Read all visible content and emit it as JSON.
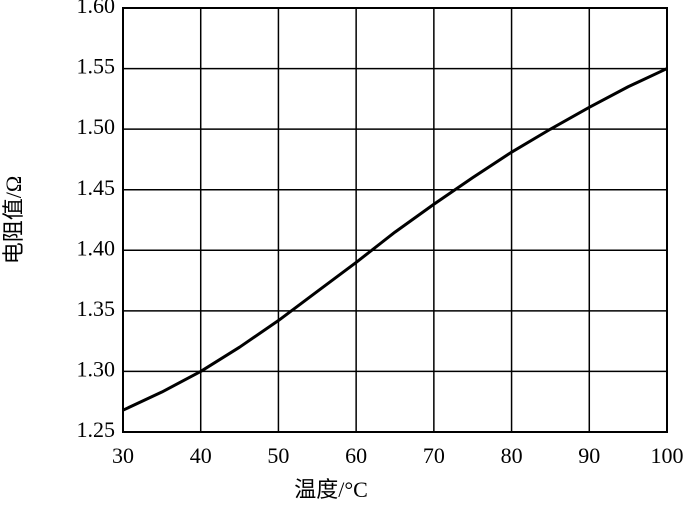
{
  "chart_data": {
    "type": "line",
    "x_label": "温度/°C",
    "y_label": "电阻值/Ω",
    "x": [
      30,
      35,
      40,
      45,
      50,
      55,
      60,
      65,
      70,
      75,
      80,
      85,
      90,
      95,
      100
    ],
    "series": [
      {
        "color": "#000000",
        "values": [
          1.268,
          1.283,
          1.3,
          1.32,
          1.342,
          1.366,
          1.39,
          1.415,
          1.438,
          1.46,
          1.481,
          1.5,
          1.518,
          1.535,
          1.55
        ]
      }
    ],
    "xlim": [
      30,
      100
    ],
    "xticks": [
      30,
      40,
      50,
      60,
      70,
      80,
      90,
      100
    ],
    "ylim": [
      1.25,
      1.6
    ],
    "yticks": [
      1.25,
      {
        "value": 1.3,
        "label": "1.30"
      },
      1.35,
      {
        "value": 1.4,
        "label": "1.40"
      },
      1.45,
      {
        "value": 1.5,
        "label": "1.50"
      },
      1.55,
      {
        "value": 1.6,
        "label": "1.60"
      }
    ],
    "grid": true
  }
}
